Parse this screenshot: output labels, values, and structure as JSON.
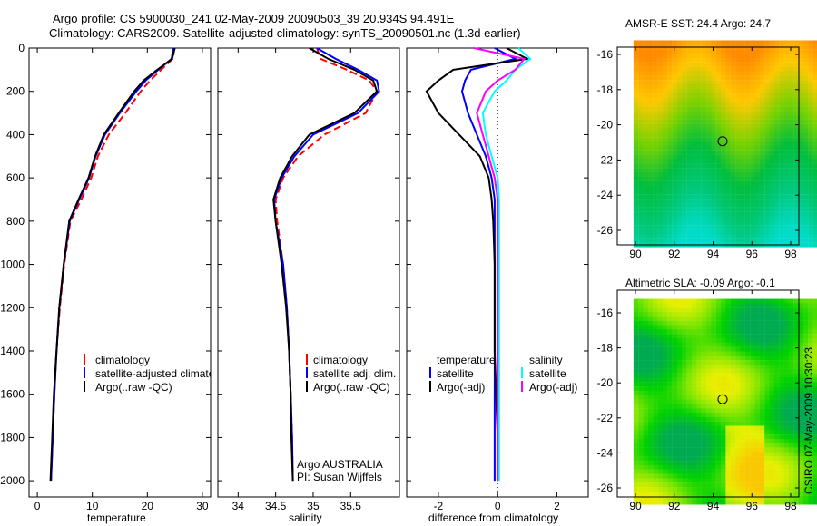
{
  "title_line1": "Argo profile: CS 5900030_241 02-May-2009 20090503_39 20.934S 94.491E",
  "title_line2": "Climatology: CARS2009. Satellite-adjusted climatology: synTS_20090501.nc (1.3d earlier)",
  "credit": "CSIRO 07-May-2009 10:30:23",
  "colors": {
    "climatology": "#ff0000",
    "satellite": "#0000ff",
    "argo": "#000000",
    "sat_sal": "#00ffff",
    "argo_sal": "#ff00ff"
  },
  "chart_data": [
    {
      "type": "line",
      "xlabel": "temperature",
      "xlim": [
        -1.5,
        31.5
      ],
      "ylim": [
        2075,
        0
      ],
      "xticks": [
        "0",
        "10",
        "20",
        "30"
      ],
      "xtick_values": [
        0,
        10,
        20,
        30
      ],
      "yticks": [
        "0",
        "200",
        "400",
        "600",
        "800",
        "1000",
        "1200",
        "1400",
        "1600",
        "1800",
        "2000"
      ],
      "depth": [
        0,
        50,
        100,
        150,
        200,
        300,
        400,
        500,
        600,
        700,
        800,
        1000,
        1200,
        1400,
        1600,
        1800,
        2000
      ],
      "legend": [
        "climatology",
        "satellite-adjusted climatology",
        "Argo(..raw -QC)"
      ],
      "series": [
        {
          "name": "climatology",
          "values": [
            24.9,
            24.6,
            22.5,
            20.5,
            18.8,
            16,
            13,
            11,
            9.8,
            8,
            6,
            4.9,
            4.1,
            3.5,
            3.1,
            2.8,
            2.5
          ]
        },
        {
          "name": "satellite-adjusted climatology",
          "values": [
            24.7,
            24.4,
            22,
            19.7,
            18,
            15,
            12.3,
            10.6,
            9.4,
            7.6,
            5.9,
            4.8,
            4,
            3.5,
            3.1,
            2.8,
            2.5
          ]
        },
        {
          "name": "Argo(..raw -QC)",
          "values": [
            25,
            24.5,
            21.8,
            19.3,
            17.6,
            14.8,
            12.1,
            10.5,
            9.3,
            7.5,
            5.8,
            4.8,
            4,
            3.5,
            3,
            2.7,
            2.4
          ]
        }
      ]
    },
    {
      "type": "line",
      "xlabel": "salinity",
      "xlim": [
        33.73,
        36.15
      ],
      "ylim": [
        2075,
        0
      ],
      "xticks": [
        "34",
        "34.5",
        "35",
        "35.5"
      ],
      "xtick_values": [
        34,
        34.5,
        35,
        35.5
      ],
      "depth": [
        0,
        50,
        100,
        150,
        200,
        300,
        400,
        500,
        600,
        700,
        800,
        1000,
        1200,
        1400,
        1600,
        1800,
        2000
      ],
      "legend": [
        "climatology",
        "satellite adj. clim.",
        "Argo(..raw -QC)"
      ],
      "annotation": [
        "Argo AUSTRALIA",
        "PI: Susan Wijffels"
      ],
      "series": [
        {
          "name": "climatology",
          "values": [
            35.05,
            35.1,
            35.45,
            35.75,
            35.85,
            35.7,
            35.15,
            34.8,
            34.6,
            34.5,
            34.52,
            34.6,
            34.65,
            34.68,
            34.7,
            34.72,
            34.73
          ]
        },
        {
          "name": "satellite adj. clim.",
          "values": [
            35.05,
            35.3,
            35.6,
            35.85,
            35.88,
            35.6,
            35.0,
            34.75,
            34.58,
            34.48,
            34.5,
            34.6,
            34.65,
            34.68,
            34.7,
            34.72,
            34.73
          ]
        },
        {
          "name": "Argo(..raw -QC)",
          "values": [
            34.95,
            35.2,
            35.55,
            35.8,
            35.85,
            35.55,
            34.95,
            34.72,
            34.56,
            34.47,
            34.5,
            34.58,
            34.64,
            34.68,
            34.7,
            34.71,
            34.73
          ]
        }
      ]
    },
    {
      "type": "line",
      "xlabel": "difference from climatology",
      "xlim": [
        -3.07,
        3.06
      ],
      "ylim": [
        2075,
        0
      ],
      "xticks": [
        "-2",
        "0",
        "2"
      ],
      "xtick_values": [
        -2,
        0,
        2
      ],
      "depth": [
        0,
        50,
        100,
        150,
        200,
        300,
        400,
        500,
        600,
        700,
        800,
        1000,
        1200,
        1400,
        1600,
        1800,
        2000
      ],
      "legend_headers": [
        "temperature",
        "salinity"
      ],
      "legend": [
        "satellite",
        "Argo(-adj)",
        "satellite",
        "Argo(-adj)"
      ],
      "series": [
        {
          "name": "temperature satellite",
          "values": [
            -0.1,
            0.6,
            -0.9,
            -1.1,
            -1.2,
            -1.0,
            -0.7,
            -0.4,
            -0.2,
            -0.1,
            -0.1,
            -0.1,
            -0.1,
            -0.1,
            -0.1,
            -0.1,
            -0.1
          ]
        },
        {
          "name": "temperature Argo(-adj)",
          "values": [
            0.3,
            1.0,
            -1.5,
            -2.0,
            -2.4,
            -2.0,
            -1.3,
            -0.6,
            -0.3,
            -0.2,
            -0.15,
            -0.1,
            -0.1,
            -0.1,
            -0.05,
            0,
            0
          ]
        },
        {
          "name": "salinity satellite",
          "values": [
            0.7,
            1.1,
            0.6,
            0.3,
            -0.1,
            -0.5,
            -0.4,
            -0.2,
            0,
            0.05,
            0.05,
            0.05,
            0.05,
            0.05,
            0.05,
            0.05,
            0.05
          ]
        },
        {
          "name": "salinity Argo(-adj)",
          "values": [
            -0.8,
            0.9,
            0.6,
            0,
            -0.4,
            -0.7,
            -0.5,
            -0.3,
            -0.1,
            0,
            0,
            0,
            0,
            0,
            0,
            0,
            0
          ]
        }
      ]
    },
    {
      "type": "heatmap",
      "title": "AMSR-E SST: 24.4 Argo: 24.7",
      "xticks": [
        "90",
        "92",
        "94",
        "96",
        "98"
      ],
      "yticks": [
        "-16",
        "-18",
        "-20",
        "-22",
        "-24",
        "-26"
      ],
      "lon_range": [
        89.9,
        99.9
      ],
      "lat_range": [
        -15.2,
        -26.8
      ],
      "argo_position": [
        94.491,
        -20.934
      ]
    },
    {
      "type": "heatmap",
      "title": "Altimetric SLA: -0.09 Argo: -0.1",
      "xticks": [
        "90",
        "92",
        "94",
        "96",
        "98"
      ],
      "yticks": [
        "-16",
        "-18",
        "-20",
        "-22",
        "-24",
        "-26"
      ],
      "lon_range": [
        89.9,
        99.9
      ],
      "lat_range": [
        -15.2,
        -26.8
      ],
      "argo_position": [
        94.491,
        -20.934
      ]
    }
  ]
}
